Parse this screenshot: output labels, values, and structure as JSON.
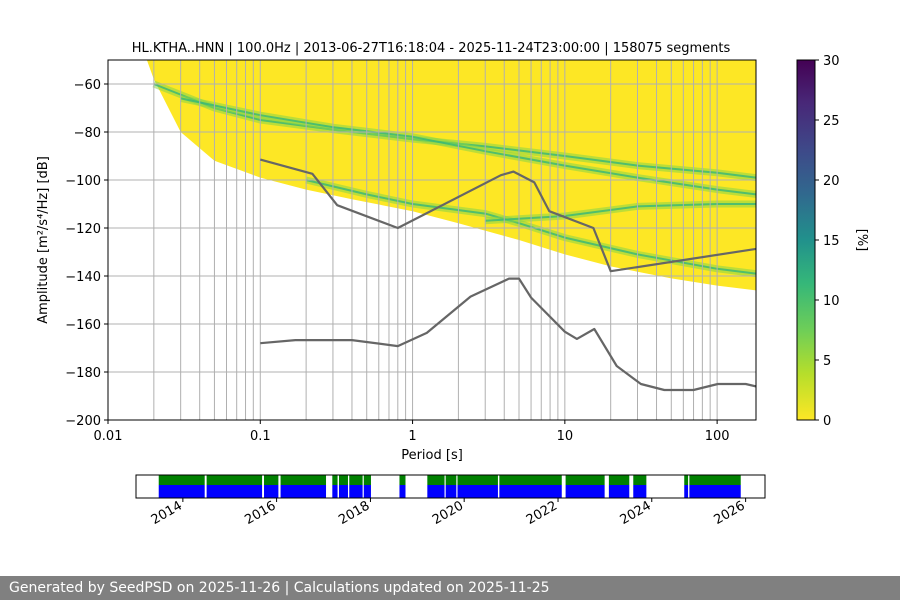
{
  "footer": {
    "text": "Generated by SeedPSD on 2025-11-26 | Calculations updated on 2025-11-25"
  },
  "chart_data": [
    {
      "type": "heatmap",
      "title": "HL.KTHA..HNN | 100.0Hz | 2013-06-27T16:18:04 - 2025-11-24T23:00:00 | 158075 segments",
      "xlabel": "Period [s]",
      "ylabel": "Amplitude [m²/s⁴/Hz] [dB]",
      "x_scale": "log",
      "xlim": [
        0.01,
        180
      ],
      "ylim": [
        -200,
        -50
      ],
      "x_ticks": [
        {
          "value": 0.01,
          "label": "0.01"
        },
        {
          "value": 0.1,
          "label": "0.1"
        },
        {
          "value": 1,
          "label": "1"
        },
        {
          "value": 10,
          "label": "10"
        },
        {
          "value": 100,
          "label": "100"
        }
      ],
      "y_ticks": [
        {
          "value": -60,
          "label": "−60"
        },
        {
          "value": -80,
          "label": "−80"
        },
        {
          "value": -100,
          "label": "−100"
        },
        {
          "value": -120,
          "label": "−120"
        },
        {
          "value": -140,
          "label": "−140"
        },
        {
          "value": -160,
          "label": "−160"
        },
        {
          "value": -180,
          "label": "−180"
        },
        {
          "value": -200,
          "label": "−200"
        }
      ],
      "grid": true,
      "vertical_grid_periods": [
        0.02,
        0.03,
        0.04,
        0.05,
        0.06,
        0.07,
        0.08,
        0.09,
        0.1,
        0.2,
        0.3,
        0.4,
        0.5,
        0.6,
        0.7,
        0.8,
        0.9,
        1,
        2,
        3,
        4,
        5,
        6,
        7,
        8,
        9,
        10,
        20,
        30,
        40,
        50,
        60,
        70,
        80,
        90,
        100
      ],
      "psd_coverage": {
        "lower_edge": [
          [
            0.018,
            -50
          ],
          [
            0.02,
            -58
          ],
          [
            0.03,
            -80
          ],
          [
            0.05,
            -92
          ],
          [
            0.1,
            -99
          ],
          [
            0.2,
            -104
          ],
          [
            0.4,
            -108
          ],
          [
            1,
            -113
          ],
          [
            2,
            -118
          ],
          [
            5,
            -125
          ],
          [
            10,
            -131
          ],
          [
            20,
            -136
          ],
          [
            50,
            -141
          ],
          [
            100,
            -144
          ],
          [
            180,
            -146
          ]
        ],
        "upper_edge": [
          [
            0.018,
            -50
          ],
          [
            180,
            -50
          ]
        ],
        "high_density_bands": [
          {
            "points": [
              [
                0.02,
                -60
              ],
              [
                0.05,
                -70
              ],
              [
                0.1,
                -75
              ],
              [
                0.3,
                -79
              ],
              [
                1,
                -83
              ],
              [
                3,
                -86
              ],
              [
                10,
                -90
              ],
              [
                30,
                -94
              ],
              [
                100,
                -97
              ],
              [
                180,
                -99
              ]
            ]
          },
          {
            "points": [
              [
                0.03,
                -66
              ],
              [
                0.1,
                -73
              ],
              [
                0.3,
                -78
              ],
              [
                1,
                -82
              ],
              [
                3,
                -88
              ],
              [
                10,
                -94
              ],
              [
                30,
                -99
              ],
              [
                100,
                -104
              ],
              [
                180,
                -106
              ]
            ]
          },
          {
            "points": [
              [
                0.2,
                -100
              ],
              [
                0.5,
                -106
              ],
              [
                1,
                -110
              ],
              [
                3,
                -114
              ],
              [
                5,
                -118
              ],
              [
                10,
                -124
              ],
              [
                30,
                -131
              ],
              [
                100,
                -137
              ],
              [
                180,
                -139
              ]
            ]
          },
          {
            "points": [
              [
                3,
                -117
              ],
              [
                10,
                -115
              ],
              [
                30,
                -111
              ],
              [
                100,
                -110
              ],
              [
                180,
                -110
              ]
            ]
          }
        ]
      },
      "noise_models": [
        {
          "points": [
            [
              0.1,
              -91.5
            ],
            [
              0.22,
              -97.4
            ],
            [
              0.32,
              -110.5
            ],
            [
              0.8,
              -120
            ],
            [
              3.8,
              -98
            ],
            [
              4.6,
              -96.5
            ],
            [
              6.3,
              -101
            ],
            [
              7.9,
              -113
            ],
            [
              15.4,
              -120
            ],
            [
              20,
              -138
            ],
            [
              180,
              -128.7
            ]
          ]
        },
        {
          "points": [
            [
              0.1,
              -168
            ],
            [
              0.17,
              -166.7
            ],
            [
              0.4,
              -166.7
            ],
            [
              0.8,
              -169.2
            ],
            [
              1.24,
              -163.7
            ],
            [
              2.4,
              -148.6
            ],
            [
              4.3,
              -141.1
            ],
            [
              5,
              -141.1
            ],
            [
              6,
              -149
            ],
            [
              10,
              -163.2
            ],
            [
              12,
              -166.2
            ],
            [
              15.6,
              -162.1
            ],
            [
              21.9,
              -177.5
            ],
            [
              31.6,
              -185
            ],
            [
              45,
              -187.5
            ],
            [
              70,
              -187.5
            ],
            [
              101,
              -185
            ],
            [
              154,
              -185
            ],
            [
              180,
              -186
            ]
          ]
        }
      ],
      "colorbar": {
        "label": "[%]",
        "range": [
          0,
          30
        ],
        "ticks": [
          {
            "value": 0,
            "label": "0"
          },
          {
            "value": 5,
            "label": "5"
          },
          {
            "value": 10,
            "label": "10"
          },
          {
            "value": 15,
            "label": "15"
          },
          {
            "value": 20,
            "label": "20"
          },
          {
            "value": 25,
            "label": "25"
          },
          {
            "value": 30,
            "label": "30"
          }
        ],
        "colormap": "viridis_r"
      }
    },
    {
      "type": "area",
      "title": "",
      "xlim": [
        "2013-01-01",
        "2026-06-01"
      ],
      "x_ticks": [
        "2014",
        "2016",
        "2018",
        "2020",
        "2022",
        "2024",
        "2026"
      ],
      "colors": {
        "upper": "#008000",
        "lower": "#0000ff"
      },
      "data_availability": [
        [
          "2013-06-27",
          "2014-06-20"
        ],
        [
          "2014-07-05",
          "2015-09-10"
        ],
        [
          "2015-09-25",
          "2016-01-15"
        ],
        [
          "2016-02-01",
          "2017-01-20"
        ],
        [
          "2017-03-10",
          "2017-04-20"
        ],
        [
          "2017-05-01",
          "2017-07-10"
        ],
        [
          "2017-07-20",
          "2017-11-01"
        ],
        [
          "2017-11-10",
          "2018-01-05"
        ],
        [
          "2018-08-15",
          "2018-10-01"
        ],
        [
          "2019-03-20",
          "2019-08-01"
        ],
        [
          "2019-08-10",
          "2019-11-01"
        ],
        [
          "2019-11-10",
          "2020-09-20"
        ],
        [
          "2020-10-01",
          "2022-01-30"
        ],
        [
          "2022-03-01",
          "2022-12-30"
        ],
        [
          "2023-02-01",
          "2023-07-10"
        ],
        [
          "2023-08-10",
          "2023-11-20"
        ],
        [
          "2024-09-10",
          "2024-10-10"
        ],
        [
          "2024-10-20",
          "2025-11-24"
        ]
      ]
    }
  ]
}
